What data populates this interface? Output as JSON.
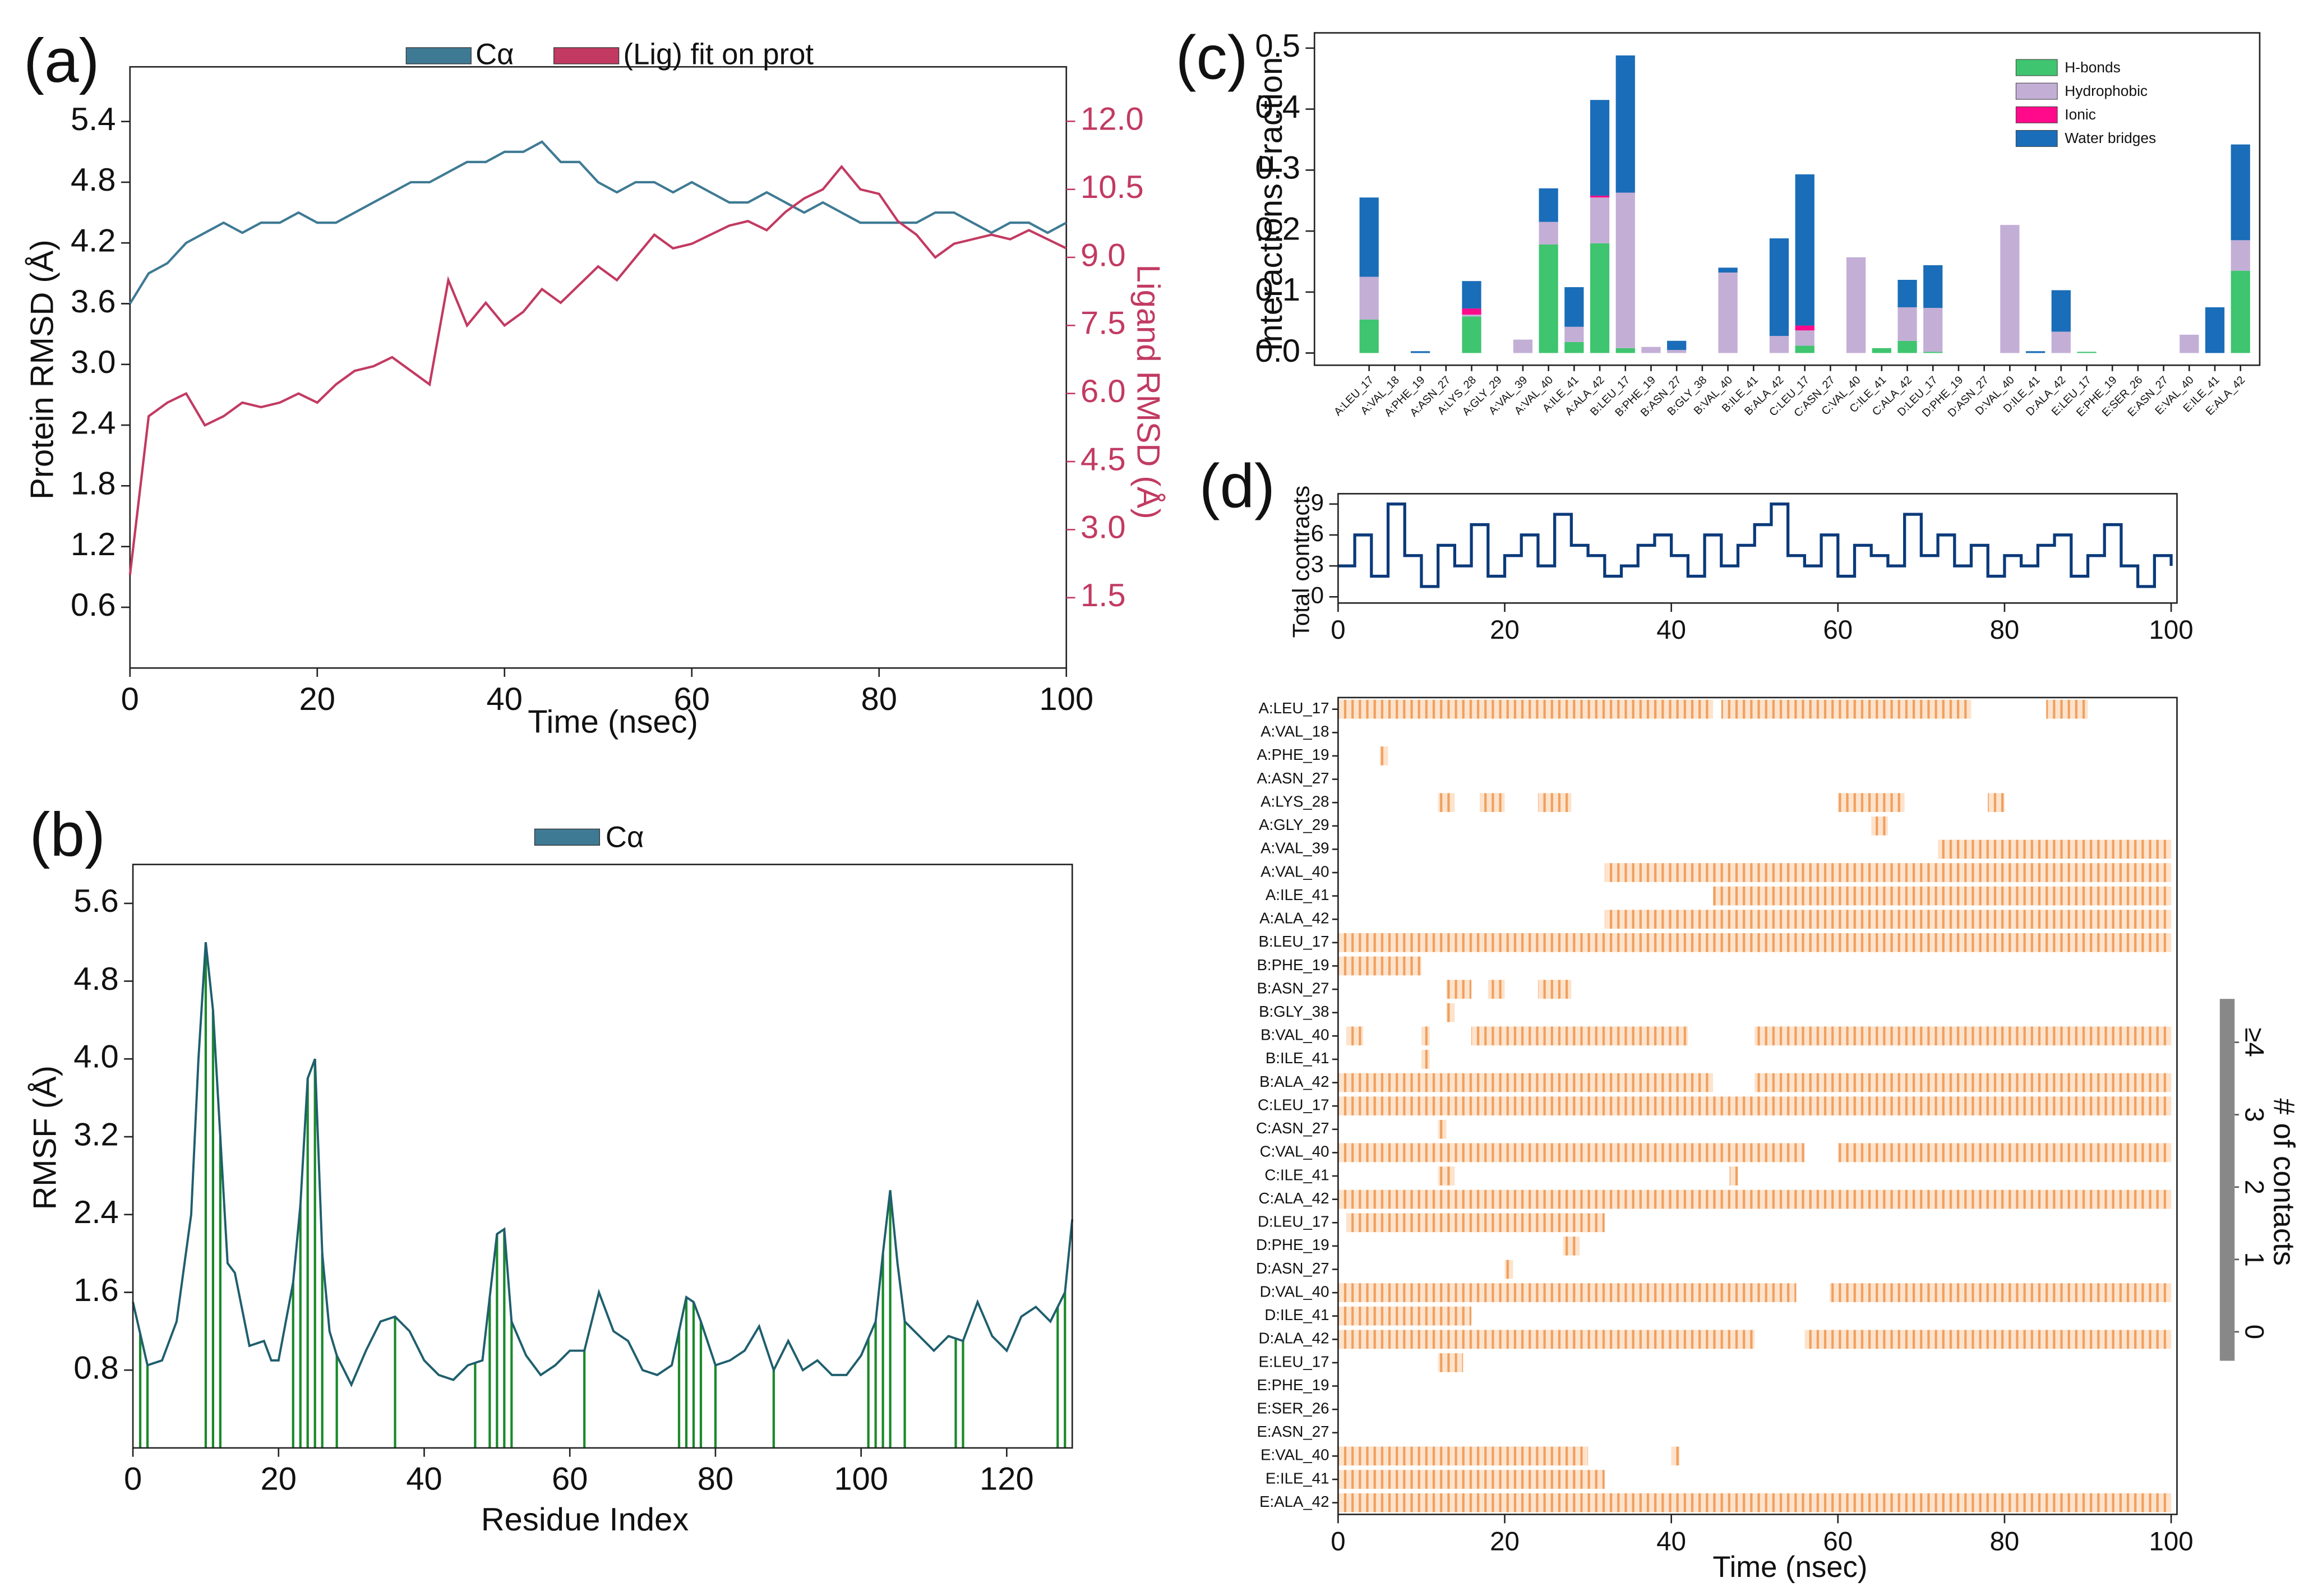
{
  "chart_data": [
    {
      "type": "line",
      "label": "(a)",
      "xlabel": "Time (nsec)",
      "ylabel": "Protein RMSD (Å)",
      "y2label": "Ligand RMSD (Å)",
      "x": [
        0,
        2,
        4,
        6,
        8,
        10,
        12,
        14,
        16,
        18,
        20,
        22,
        24,
        26,
        28,
        30,
        32,
        34,
        36,
        38,
        40,
        42,
        44,
        46,
        48,
        50,
        52,
        54,
        56,
        58,
        60,
        62,
        64,
        66,
        68,
        70,
        72,
        74,
        76,
        78,
        80,
        82,
        84,
        86,
        88,
        90,
        92,
        94,
        96,
        98,
        100
      ],
      "series": [
        {
          "name": "Cα",
          "color": "#3f7a94",
          "values": [
            3.6,
            3.9,
            4.0,
            4.2,
            4.3,
            4.4,
            4.3,
            4.4,
            4.4,
            4.5,
            4.4,
            4.4,
            4.5,
            4.6,
            4.7,
            4.8,
            4.8,
            4.9,
            5.0,
            5.0,
            5.1,
            5.1,
            5.2,
            5.0,
            5.0,
            4.8,
            4.7,
            4.8,
            4.8,
            4.7,
            4.8,
            4.7,
            4.6,
            4.6,
            4.7,
            4.6,
            4.5,
            4.6,
            4.5,
            4.4,
            4.4,
            4.4,
            4.4,
            4.5,
            4.5,
            4.4,
            4.3,
            4.4,
            4.4,
            4.3,
            4.4
          ]
        },
        {
          "name": "(Lig) fit on prot",
          "color": "#c23a62",
          "axis": "y2",
          "values": [
            2.0,
            5.5,
            5.8,
            6.0,
            5.3,
            5.5,
            5.8,
            5.7,
            5.8,
            6.0,
            5.8,
            6.2,
            6.5,
            6.6,
            6.8,
            6.5,
            6.2,
            8.5,
            7.5,
            8.0,
            7.5,
            7.8,
            8.3,
            8.0,
            8.4,
            8.8,
            8.5,
            9.0,
            9.5,
            9.2,
            9.3,
            9.5,
            9.7,
            9.8,
            9.6,
            10.0,
            10.3,
            10.5,
            11.0,
            10.5,
            10.4,
            9.8,
            9.5,
            9.0,
            9.3,
            9.4,
            9.5,
            9.4,
            9.6,
            9.4,
            9.2
          ]
        }
      ],
      "xlim": [
        0,
        100
      ],
      "xticks": [
        0,
        20,
        40,
        60,
        80,
        100
      ],
      "ylim": [
        0,
        5.94
      ],
      "yticks": [
        0.6,
        1.2,
        1.8,
        2.4,
        {
          "value": 3.0,
          "label": "3.0"
        },
        3.6,
        4.2,
        4.8,
        5.4
      ],
      "y2lim": [
        -0.05,
        13.2
      ],
      "y2ticks": [
        1.5,
        {
          "value": 3.0,
          "label": "3.0"
        },
        4.5,
        {
          "value": 6.0,
          "label": "6.0"
        },
        7.5,
        {
          "value": 9.0,
          "label": "9.0"
        },
        10.5,
        {
          "value": 12.0,
          "label": "12.0"
        }
      ]
    },
    {
      "type": "line",
      "label": "(b)",
      "xlabel": "Residue Index",
      "ylabel": "RMSF (Å)",
      "x": [
        0,
        2,
        4,
        6,
        8,
        9,
        10,
        11,
        12,
        13,
        14,
        16,
        18,
        19,
        20,
        22,
        23,
        24,
        25,
        26,
        27,
        28,
        30,
        32,
        34,
        36,
        38,
        40,
        42,
        44,
        46,
        48,
        50,
        51,
        52,
        54,
        56,
        58,
        60,
        62,
        64,
        66,
        68,
        70,
        72,
        74,
        76,
        77,
        78,
        80,
        82,
        84,
        86,
        88,
        90,
        92,
        94,
        96,
        98,
        100,
        102,
        103,
        104,
        105,
        106,
        108,
        110,
        112,
        114,
        116,
        118,
        120,
        122,
        124,
        126,
        128,
        129
      ],
      "series": [
        {
          "name": "Cα",
          "color": "#1f5f6e",
          "values": [
            1.5,
            0.85,
            0.9,
            1.3,
            2.4,
            4.0,
            5.2,
            4.5,
            3.2,
            1.9,
            1.8,
            1.05,
            1.1,
            0.9,
            0.9,
            1.7,
            2.5,
            3.8,
            4.0,
            2.0,
            1.2,
            0.95,
            0.65,
            1.0,
            1.3,
            1.35,
            1.2,
            0.9,
            0.75,
            0.7,
            0.85,
            0.9,
            2.2,
            2.25,
            1.3,
            0.95,
            0.75,
            0.85,
            1.0,
            1.0,
            1.6,
            1.2,
            1.1,
            0.8,
            0.75,
            0.85,
            1.55,
            1.5,
            1.3,
            0.85,
            0.9,
            1.0,
            1.25,
            0.8,
            1.1,
            0.8,
            0.9,
            0.75,
            0.75,
            0.95,
            1.3,
            2.0,
            2.65,
            1.9,
            1.3,
            1.15,
            1.0,
            1.15,
            1.1,
            1.5,
            1.15,
            1.0,
            1.35,
            1.45,
            1.3,
            1.6,
            2.35
          ]
        }
      ],
      "contact_residues": [
        1,
        2,
        10,
        11,
        12,
        22,
        23,
        24,
        25,
        26,
        28,
        36,
        47,
        49,
        50,
        51,
        52,
        62,
        75,
        76,
        77,
        78,
        80,
        88,
        101,
        102,
        103,
        104,
        106,
        113,
        114,
        127,
        128
      ],
      "contact_color": "#1a8a2a",
      "xlim": [
        0,
        129
      ],
      "xticks": [
        0,
        20,
        40,
        60,
        80,
        100,
        120
      ],
      "ylim": [
        0,
        6.0
      ],
      "yticks": [
        0.8,
        1.6,
        2.4,
        3.2,
        {
          "value": 4.0,
          "label": "4.0"
        },
        4.8,
        5.6
      ]
    },
    {
      "type": "bar",
      "stacked": true,
      "label": "(c)",
      "ylabel": "Interactions Fraction",
      "legend": "upper right",
      "categories": [
        "A:LEU_17",
        "A:VAL_18",
        "A:PHE_19",
        "A:ASN_27",
        "A:LYS_28",
        "A:GLY_29",
        "A:VAL_39",
        "A:VAL_40",
        "A:ILE_41",
        "A:ALA_42",
        "B:LEU_17",
        "B:PHE_19",
        "B:ASN_27",
        "B:GLY_38",
        "B:VAL_40",
        "B:ILE_41",
        "B:ALA_42",
        "C:LEU_17",
        "C:ASN_27",
        "C:VAL_40",
        "C:ILE_41",
        "C:ALA_42",
        "D:LEU_17",
        "D:PHE_19",
        "D:ASN_27",
        "D:VAL_40",
        "D:ILE_41",
        "D:ALA_42",
        "E:LEU_17",
        "E:PHE_19",
        "E:SER_26",
        "E:ASN_27",
        "E:VAL_40",
        "E:ILE_41",
        "E:ALA_42"
      ],
      "series": [
        {
          "name": "H-bonds",
          "color": "#3fc46f",
          "values": [
            0.055,
            0,
            0,
            0,
            0.06,
            0,
            0,
            0.178,
            0.018,
            0.18,
            0.008,
            0,
            0,
            0,
            0,
            0,
            0,
            0.012,
            0,
            0,
            0.008,
            0.02,
            0.002,
            0,
            0,
            0,
            0,
            0,
            0.002,
            0,
            0,
            0,
            0,
            0,
            0.135
          ]
        },
        {
          "name": "Hydrophobic",
          "color": "#c3aed6",
          "values": [
            0.07,
            0,
            0,
            0,
            0.003,
            0,
            0.022,
            0.037,
            0.025,
            0.075,
            0.255,
            0.01,
            0.005,
            0,
            0.132,
            0,
            0.028,
            0.025,
            0,
            0.157,
            0,
            0.055,
            0.072,
            0,
            0,
            0.21,
            0,
            0.035,
            0,
            0,
            0,
            0,
            0.03,
            0,
            0.05
          ]
        },
        {
          "name": "Ionic",
          "color": "#ff0a8a",
          "values": [
            0,
            0,
            0,
            0,
            0.01,
            0,
            0,
            0,
            0,
            0.003,
            0,
            0,
            0,
            0,
            0,
            0,
            0,
            0.008,
            0,
            0,
            0,
            0,
            0,
            0,
            0,
            0,
            0,
            0,
            0,
            0,
            0,
            0,
            0,
            0,
            0
          ]
        },
        {
          "name": "Water bridges",
          "color": "#1a6db8",
          "values": [
            0.13,
            0,
            0.003,
            0,
            0.045,
            0,
            0,
            0.055,
            0.065,
            0.157,
            0.225,
            0,
            0.015,
            0,
            0.008,
            0,
            0.16,
            0.248,
            0,
            0,
            0,
            0.045,
            0.07,
            0,
            0,
            0,
            0.003,
            0.068,
            0,
            0,
            0,
            0,
            0,
            0.075,
            0.157
          ]
        }
      ],
      "ylim": [
        -0.02,
        0.525
      ],
      "yticks": [
        {
          "value": 0,
          "label": "0.0"
        },
        0.1,
        0.2,
        0.3,
        0.4,
        0.5
      ]
    },
    {
      "type": "line",
      "label": "(d)",
      "ylabel": "Total contracts",
      "x": [
        0,
        2,
        4,
        6,
        8,
        10,
        12,
        14,
        16,
        18,
        20,
        22,
        24,
        26,
        28,
        30,
        32,
        34,
        36,
        38,
        40,
        42,
        44,
        46,
        48,
        50,
        52,
        54,
        56,
        58,
        60,
        62,
        64,
        66,
        68,
        70,
        72,
        74,
        76,
        78,
        80,
        82,
        84,
        86,
        88,
        90,
        92,
        94,
        96,
        98,
        100
      ],
      "series": [
        {
          "name": "Total contacts",
          "color": "#0b3a7a",
          "values": [
            3,
            6,
            2,
            9,
            4,
            1,
            5,
            3,
            7,
            2,
            4,
            6,
            3,
            8,
            5,
            4,
            2,
            3,
            5,
            6,
            4,
            2,
            6,
            3,
            5,
            7,
            9,
            4,
            3,
            6,
            2,
            5,
            4,
            3,
            8,
            4,
            6,
            3,
            5,
            2,
            4,
            3,
            5,
            6,
            2,
            4,
            7,
            3,
            1,
            4,
            3
          ]
        }
      ],
      "xlim": [
        0,
        100.7
      ],
      "xticks": [
        0,
        20,
        40,
        60,
        80,
        100
      ],
      "ylim": [
        -0.6,
        10
      ],
      "yticks": [
        0,
        3,
        6,
        9
      ]
    },
    {
      "type": "heatmap",
      "xlabel": "Time (nsec)",
      "color": "#f0a060",
      "rows": [
        {
          "name": "A:LEU_17",
          "segments": [
            [
              0,
              45
            ],
            [
              46,
              76
            ],
            [
              85,
              90
            ]
          ]
        },
        {
          "name": "A:VAL_18",
          "segments": []
        },
        {
          "name": "A:PHE_19",
          "segments": [
            [
              5,
              6
            ]
          ]
        },
        {
          "name": "A:ASN_27",
          "segments": []
        },
        {
          "name": "A:LYS_28",
          "segments": [
            [
              12,
              14
            ],
            [
              17,
              20
            ],
            [
              24,
              28
            ],
            [
              60,
              68
            ],
            [
              78,
              80
            ]
          ]
        },
        {
          "name": "A:GLY_29",
          "segments": [
            [
              64,
              66
            ]
          ]
        },
        {
          "name": "A:VAL_39",
          "segments": [
            [
              72,
              100
            ]
          ]
        },
        {
          "name": "A:VAL_40",
          "segments": [
            [
              32,
              100
            ]
          ]
        },
        {
          "name": "A:ILE_41",
          "segments": [
            [
              45,
              100
            ]
          ]
        },
        {
          "name": "A:ALA_42",
          "segments": [
            [
              32,
              100
            ]
          ]
        },
        {
          "name": "B:LEU_17",
          "segments": [
            [
              0,
              100
            ]
          ]
        },
        {
          "name": "B:PHE_19",
          "segments": [
            [
              0,
              10
            ]
          ]
        },
        {
          "name": "B:ASN_27",
          "segments": [
            [
              13,
              16
            ],
            [
              18,
              20
            ],
            [
              24,
              28
            ]
          ]
        },
        {
          "name": "B:GLY_38",
          "segments": [
            [
              13,
              14
            ]
          ]
        },
        {
          "name": "B:VAL_40",
          "segments": [
            [
              1,
              3
            ],
            [
              10,
              11
            ],
            [
              16,
              42
            ],
            [
              50,
              100
            ]
          ]
        },
        {
          "name": "B:ILE_41",
          "segments": [
            [
              10,
              11
            ]
          ]
        },
        {
          "name": "B:ALA_42",
          "segments": [
            [
              0,
              45
            ],
            [
              50,
              100
            ]
          ]
        },
        {
          "name": "C:LEU_17",
          "segments": [
            [
              0,
              100
            ]
          ]
        },
        {
          "name": "C:ASN_27",
          "segments": [
            [
              12,
              13
            ]
          ]
        },
        {
          "name": "C:VAL_40",
          "segments": [
            [
              0,
              56
            ],
            [
              60,
              100
            ]
          ]
        },
        {
          "name": "C:ILE_41",
          "segments": [
            [
              12,
              14
            ],
            [
              47,
              48
            ]
          ]
        },
        {
          "name": "C:ALA_42",
          "segments": [
            [
              0,
              100
            ]
          ]
        },
        {
          "name": "D:LEU_17",
          "segments": [
            [
              1,
              32
            ]
          ]
        },
        {
          "name": "D:PHE_19",
          "segments": [
            [
              27,
              29
            ]
          ]
        },
        {
          "name": "D:ASN_27",
          "segments": [
            [
              20,
              21
            ]
          ]
        },
        {
          "name": "D:VAL_40",
          "segments": [
            [
              0,
              55
            ],
            [
              59,
              100
            ]
          ]
        },
        {
          "name": "D:ILE_41",
          "segments": [
            [
              0,
              16
            ]
          ]
        },
        {
          "name": "D:ALA_42",
          "segments": [
            [
              0,
              50
            ],
            [
              56,
              100
            ]
          ]
        },
        {
          "name": "E:LEU_17",
          "segments": [
            [
              12,
              15
            ]
          ]
        },
        {
          "name": "E:PHE_19",
          "segments": []
        },
        {
          "name": "E:SER_26",
          "segments": []
        },
        {
          "name": "E:ASN_27",
          "segments": []
        },
        {
          "name": "E:VAL_40",
          "segments": [
            [
              0,
              30
            ],
            [
              40,
              41
            ]
          ]
        },
        {
          "name": "E:ILE_41",
          "segments": [
            [
              0,
              32
            ]
          ]
        },
        {
          "name": "E:ALA_42",
          "segments": [
            [
              0,
              100
            ]
          ]
        }
      ],
      "xlim": [
        0,
        100.7
      ],
      "xticks": [
        0,
        20,
        40,
        60,
        80,
        100
      ],
      "colorbar_label": "# of contacts",
      "colorbar_color": "#888888",
      "clim": [
        -0.4,
        4.6
      ],
      "cticks": [
        0,
        1,
        2,
        3,
        {
          "value": 4,
          "label": "≥4"
        }
      ]
    }
  ]
}
